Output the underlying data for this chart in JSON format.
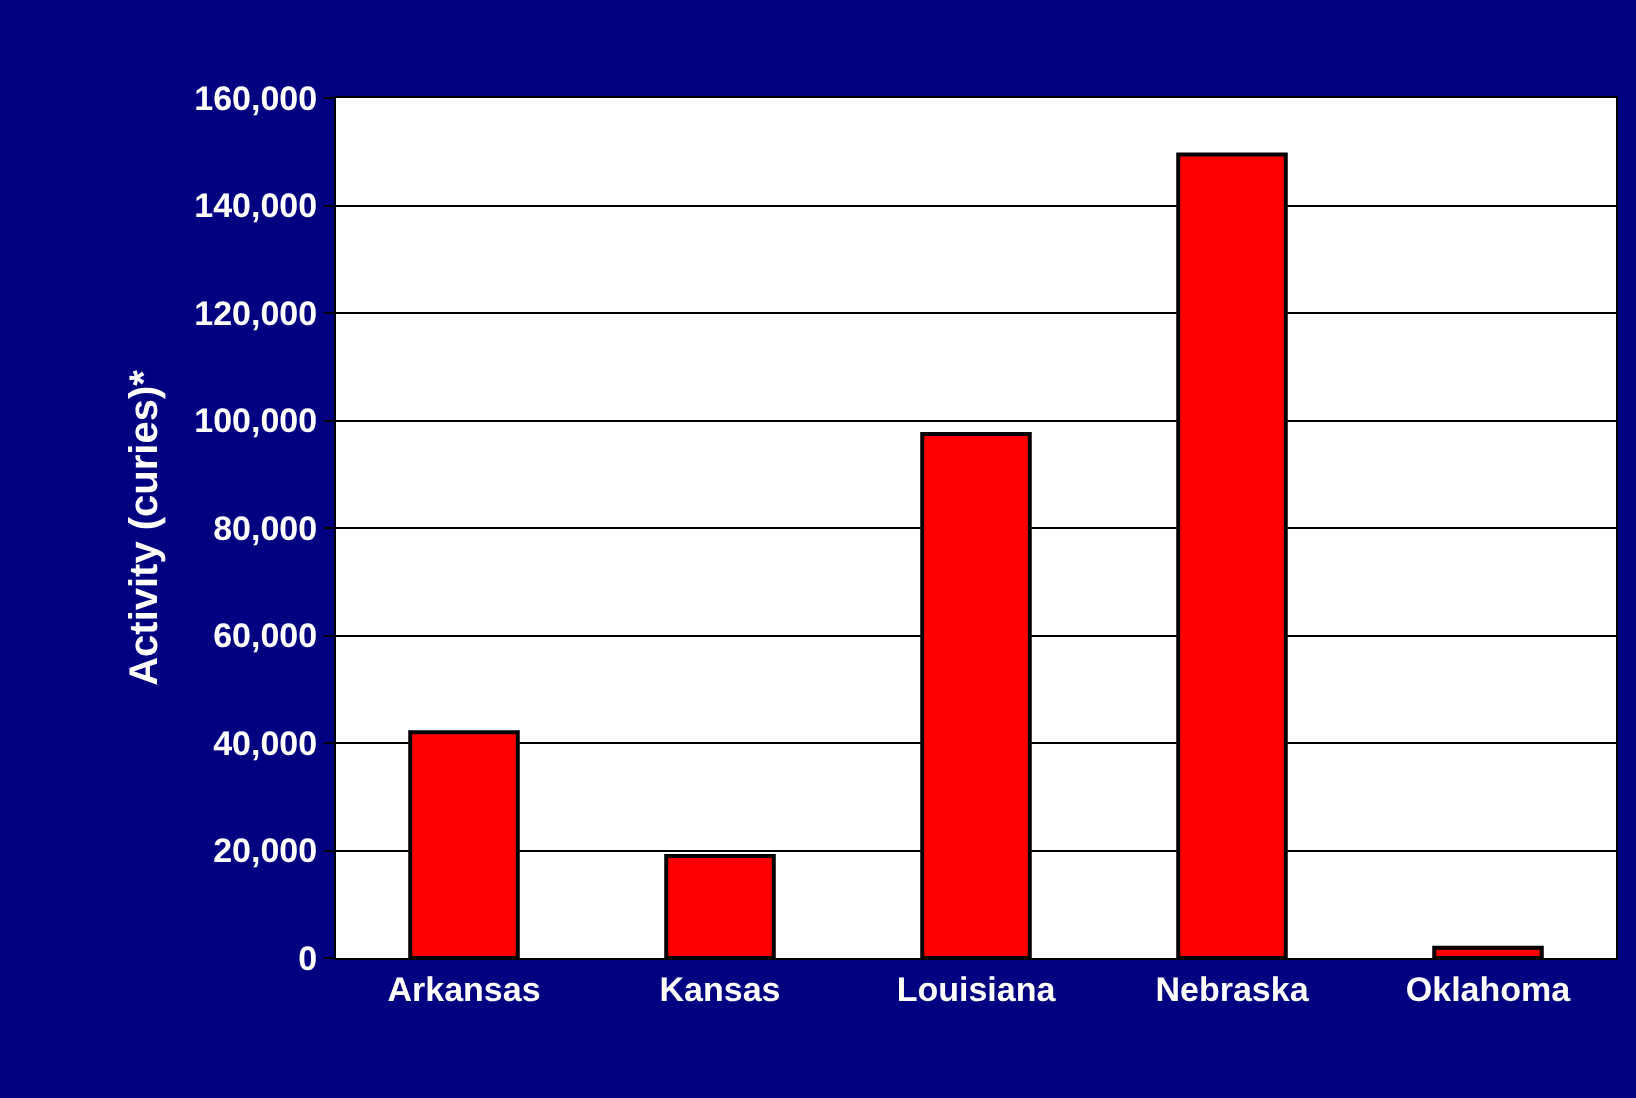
{
  "chart_data": {
    "type": "bar",
    "ylabel": "Activity (curies)*",
    "categories": [
      "Arkansas",
      "Kansas",
      "Louisiana",
      "Nebraska",
      "Oklahoma"
    ],
    "values": [
      42000,
      19000,
      97500,
      149500,
      1900
    ],
    "color": "#ff0000",
    "ylim": [
      0,
      160000
    ],
    "yticks": [
      {
        "value": 0,
        "label": "0"
      },
      {
        "value": 20000,
        "label": "20,000"
      },
      {
        "value": 40000,
        "label": "40,000"
      },
      {
        "value": 60000,
        "label": "60,000"
      },
      {
        "value": 80000,
        "label": "80,000"
      },
      {
        "value": 100000,
        "label": "100,000"
      },
      {
        "value": 120000,
        "label": "120,000"
      },
      {
        "value": 140000,
        "label": "140,000"
      },
      {
        "value": 160000,
        "label": "160,000"
      }
    ],
    "grid": "y"
  }
}
